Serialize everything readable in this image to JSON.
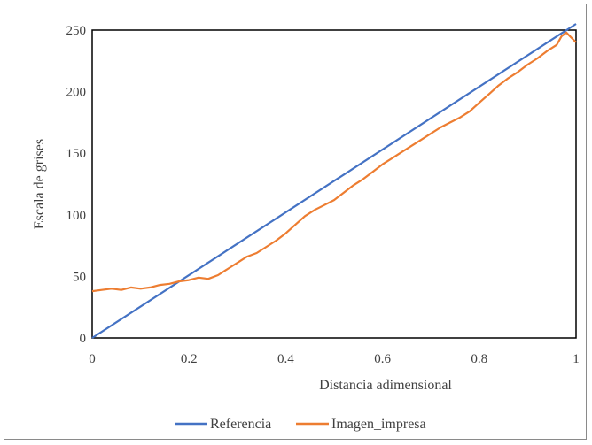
{
  "chart_data": {
    "type": "line",
    "title": "",
    "xlabel": "Distancia adimensional",
    "ylabel": "Escala de grises",
    "xlim": [
      0,
      1
    ],
    "ylim": [
      0,
      250
    ],
    "x_ticks": [
      "0",
      "0.2",
      "0.4",
      "0.6",
      "0.8",
      "1"
    ],
    "y_ticks": [
      "0",
      "50",
      "100",
      "150",
      "200",
      "250"
    ],
    "grid": false,
    "legend_position": "bottom",
    "series": [
      {
        "name": "Referencia",
        "color": "#4472c4",
        "x": [
          0,
          1
        ],
        "y": [
          0,
          255
        ]
      },
      {
        "name": "Imagen_impresa",
        "color": "#ed7d31",
        "x": [
          0,
          0.02,
          0.04,
          0.06,
          0.08,
          0.1,
          0.12,
          0.14,
          0.16,
          0.18,
          0.2,
          0.22,
          0.24,
          0.26,
          0.28,
          0.3,
          0.32,
          0.34,
          0.36,
          0.38,
          0.4,
          0.42,
          0.44,
          0.46,
          0.48,
          0.5,
          0.52,
          0.54,
          0.56,
          0.58,
          0.6,
          0.62,
          0.64,
          0.66,
          0.68,
          0.7,
          0.72,
          0.74,
          0.76,
          0.78,
          0.8,
          0.82,
          0.84,
          0.86,
          0.88,
          0.9,
          0.92,
          0.94,
          0.96,
          0.97,
          0.98,
          0.99,
          1.0
        ],
        "y": [
          38,
          39,
          40,
          39,
          41,
          40,
          41,
          43,
          44,
          46,
          47,
          49,
          48,
          51,
          56,
          61,
          66,
          69,
          74,
          79,
          85,
          92,
          99,
          104,
          108,
          112,
          118,
          124,
          129,
          135,
          141,
          146,
          151,
          156,
          161,
          166,
          171,
          175,
          179,
          184,
          191,
          198,
          205,
          211,
          216,
          222,
          227,
          233,
          238,
          245,
          248,
          244,
          240
        ]
      }
    ]
  }
}
